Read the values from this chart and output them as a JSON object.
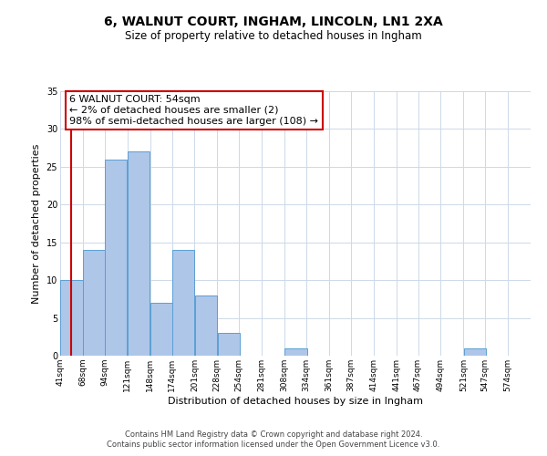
{
  "title": "6, WALNUT COURT, INGHAM, LINCOLN, LN1 2XA",
  "subtitle": "Size of property relative to detached houses in Ingham",
  "xlabel": "Distribution of detached houses by size in Ingham",
  "ylabel": "Number of detached properties",
  "bins": [
    41,
    68,
    94,
    121,
    148,
    174,
    201,
    228,
    254,
    281,
    308,
    334,
    361,
    387,
    414,
    441,
    467,
    494,
    521,
    547,
    574
  ],
  "counts": [
    10,
    14,
    26,
    27,
    7,
    14,
    8,
    3,
    0,
    0,
    1,
    0,
    0,
    0,
    0,
    0,
    0,
    0,
    1,
    0
  ],
  "bar_color": "#aec6e8",
  "bar_edge_color": "#5a9fd4",
  "red_line_x": 54,
  "annotation_line1": "6 WALNUT COURT: 54sqm",
  "annotation_line2": "← 2% of detached houses are smaller (2)",
  "annotation_line3": "98% of semi-detached houses are larger (108) →",
  "annotation_box_color": "#ffffff",
  "annotation_box_edge_color": "#cc0000",
  "ylim": [
    0,
    35
  ],
  "yticks": [
    0,
    5,
    10,
    15,
    20,
    25,
    30,
    35
  ],
  "tick_labels": [
    "41sqm",
    "68sqm",
    "94sqm",
    "121sqm",
    "148sqm",
    "174sqm",
    "201sqm",
    "228sqm",
    "254sqm",
    "281sqm",
    "308sqm",
    "334sqm",
    "361sqm",
    "387sqm",
    "414sqm",
    "441sqm",
    "467sqm",
    "494sqm",
    "521sqm",
    "547sqm",
    "574sqm"
  ],
  "footer_line1": "Contains HM Land Registry data © Crown copyright and database right 2024.",
  "footer_line2": "Contains public sector information licensed under the Open Government Licence v3.0.",
  "background_color": "#ffffff",
  "grid_color": "#cdd9e8",
  "title_fontsize": 10,
  "subtitle_fontsize": 8.5,
  "xlabel_fontsize": 8,
  "ylabel_fontsize": 8,
  "tick_fontsize": 6.5,
  "annotation_fontsize": 8
}
